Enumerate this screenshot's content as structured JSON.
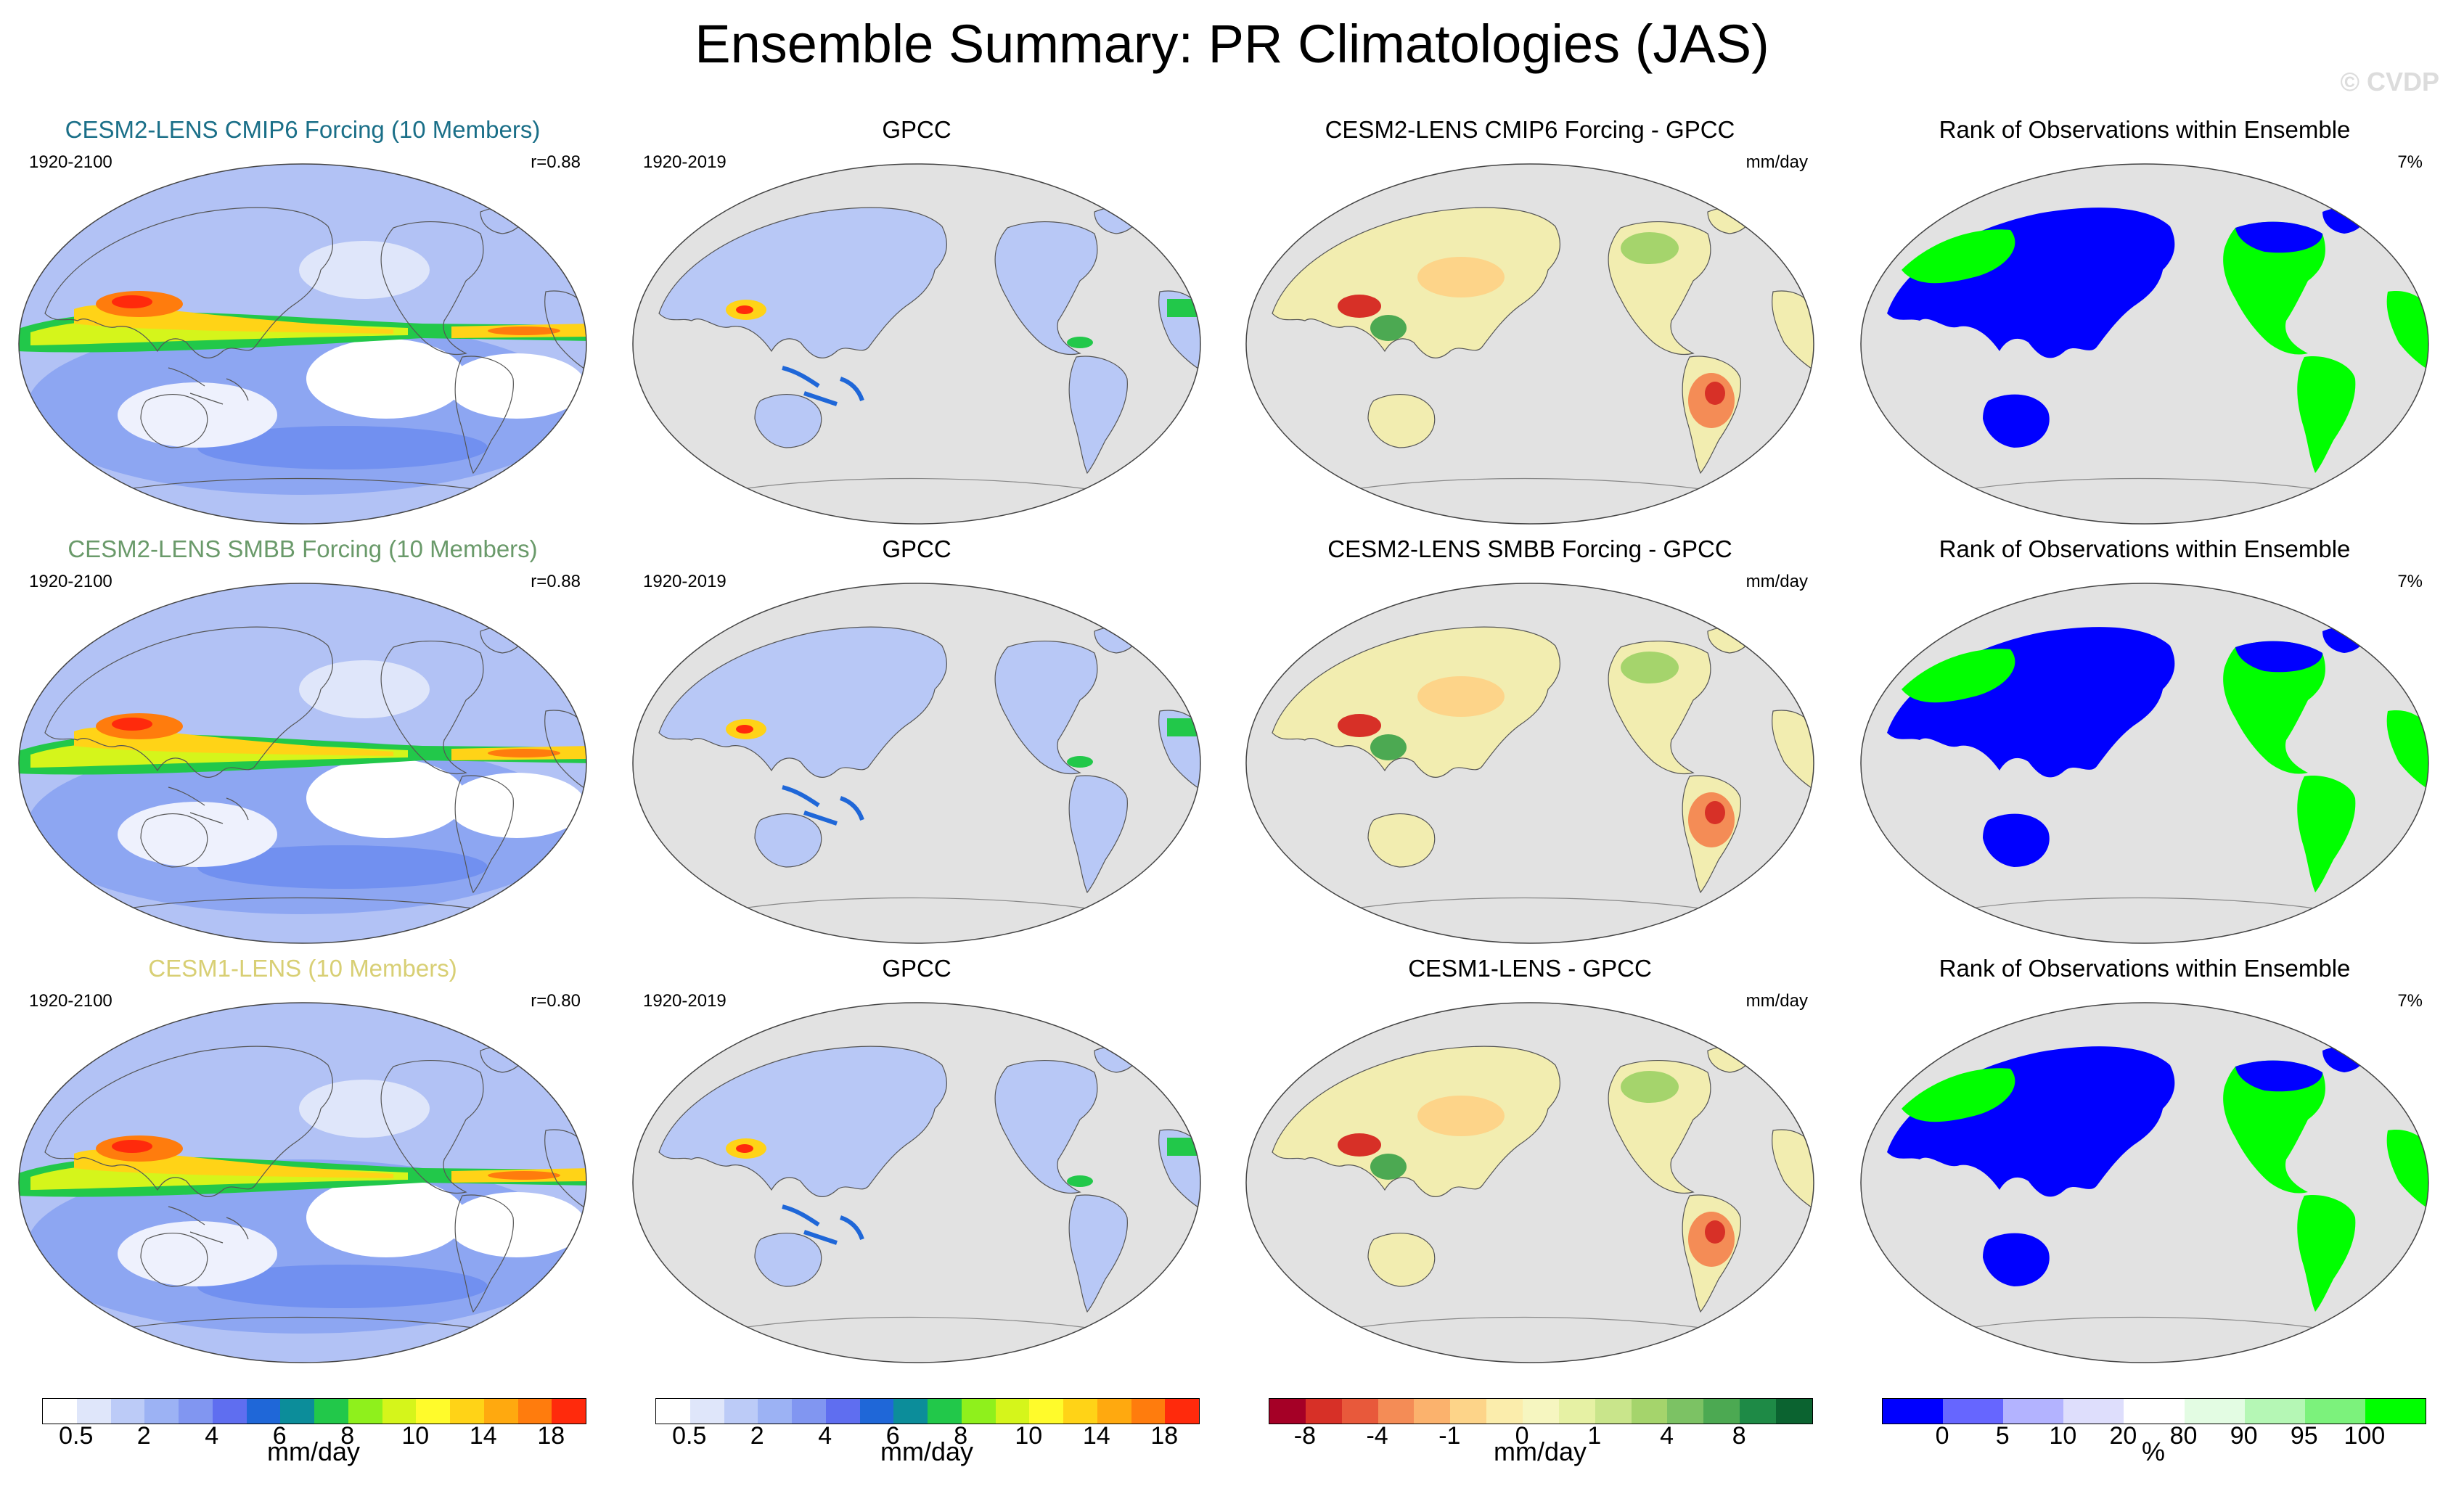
{
  "title": "Ensemble Summary: PR Climatologies (JAS)",
  "copyright": "© CVDP",
  "rows": [
    {
      "model": {
        "title": "CESM2-LENS CMIP6 Forcing (10 Members)",
        "title_color": "#1a6f88",
        "years": "1920-2100",
        "corr": "r=0.88",
        "variant": 0
      },
      "obs": {
        "title": "GPCC",
        "years": "1920-2019"
      },
      "diff": {
        "title": "CESM2-LENS CMIP6 Forcing - GPCC",
        "units": "mm/day"
      },
      "rank": {
        "title": "Rank of Observations within Ensemble",
        "pct": "7%"
      }
    },
    {
      "model": {
        "title": "CESM2-LENS SMBB Forcing (10 Members)",
        "title_color": "#6a9a6a",
        "years": "1920-2100",
        "corr": "r=0.88",
        "variant": 1
      },
      "obs": {
        "title": "GPCC",
        "years": "1920-2019"
      },
      "diff": {
        "title": "CESM2-LENS SMBB Forcing - GPCC",
        "units": "mm/day"
      },
      "rank": {
        "title": "Rank of Observations within Ensemble",
        "pct": "7%"
      }
    },
    {
      "model": {
        "title": "CESM1-LENS (10 Members)",
        "title_color": "#d8cf74",
        "years": "1920-2100",
        "corr": "r=0.80",
        "variant": 2
      },
      "obs": {
        "title": "GPCC",
        "years": "1920-2019"
      },
      "diff": {
        "title": "CESM1-LENS - GPCC",
        "units": "mm/day"
      },
      "rank": {
        "title": "Rank of Observations within Ensemble",
        "pct": "7%"
      }
    }
  ],
  "colorbars": [
    {
      "colors": [
        "#ffffff",
        "#dfe6fa",
        "#bccbf7",
        "#9cb2f4",
        "#8196f1",
        "#5f6ef0",
        "#1f67d8",
        "#0c8d9a",
        "#22c84a",
        "#8ff01c",
        "#d5f51b",
        "#fffb2b",
        "#ffd317",
        "#ffa90f",
        "#ff7c0d",
        "#ff2a0c"
      ],
      "ticks": [
        "0.5",
        "2",
        "4",
        "6",
        "8",
        "10",
        "14",
        "18"
      ],
      "tick_index": [
        1,
        3,
        5,
        7,
        9,
        11,
        13,
        15
      ],
      "units": "mm/day"
    },
    {
      "colors": [
        "#ffffff",
        "#dfe6fa",
        "#bccbf7",
        "#9cb2f4",
        "#8196f1",
        "#5f6ef0",
        "#1f67d8",
        "#0c8d9a",
        "#22c84a",
        "#8ff01c",
        "#d5f51b",
        "#fffb2b",
        "#ffd317",
        "#ffa90f",
        "#ff7c0d",
        "#ff2a0c"
      ],
      "ticks": [
        "0.5",
        "2",
        "4",
        "6",
        "8",
        "10",
        "14",
        "18"
      ],
      "tick_index": [
        1,
        3,
        5,
        7,
        9,
        11,
        13,
        15
      ],
      "units": "mm/day"
    },
    {
      "colors": [
        "#a50026",
        "#d73027",
        "#e8593b",
        "#f48c56",
        "#fbb26d",
        "#fdd489",
        "#fbedac",
        "#f6f6c0",
        "#e6f1a4",
        "#c9e58b",
        "#a5d46c",
        "#7cc264",
        "#4ca952",
        "#1e8a46",
        "#0b6330"
      ],
      "ticks": [
        "-8",
        "-4",
        "-1",
        "0",
        "1",
        "4",
        "8"
      ],
      "tick_index": [
        1,
        3,
        5,
        7,
        9,
        11,
        13
      ],
      "units": "mm/day"
    },
    {
      "colors": [
        "#0000ff",
        "#6666ff",
        "#b3b3ff",
        "#dedefc",
        "#ffffff",
        "#e3fce3",
        "#b5f7b5",
        "#7cf27c",
        "#00ff00"
      ],
      "ticks": [
        "0",
        "5",
        "10",
        "20",
        "80",
        "90",
        "95",
        "100"
      ],
      "tick_index": [
        1,
        2,
        3,
        4,
        5,
        6,
        7,
        8
      ],
      "units": "%"
    }
  ]
}
